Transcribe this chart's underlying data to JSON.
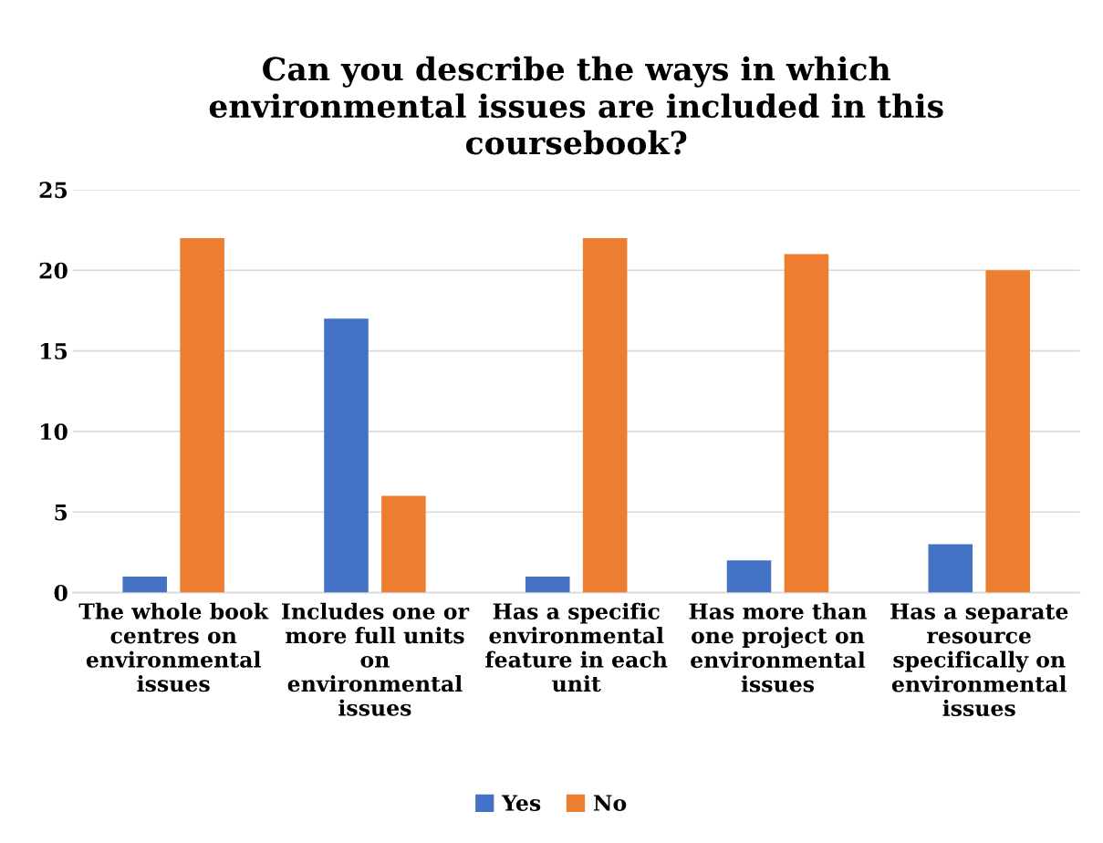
{
  "chart_data": {
    "type": "bar",
    "title": "Can you describe the ways in which\nenvironmental issues are included in this\ncoursebook?",
    "categories": [
      "The whole book\ncentres on\nenvironmental\nissues",
      "Includes one or\nmore full units\non\nenvironmental\nissues",
      "Has a specific\nenvironmental\nfeature in each\nunit",
      "Has more than\none project on\nenvironmental\nissues",
      "Has a separate\nresource\nspecifically on\nenvironmental\nissues"
    ],
    "series": [
      {
        "name": "Yes",
        "color": "#4472c4",
        "values": [
          1,
          17,
          1,
          2,
          3
        ]
      },
      {
        "name": "No",
        "color": "#ed7d31",
        "values": [
          22,
          6,
          22,
          21,
          20
        ]
      }
    ],
    "ylim": [
      0,
      25
    ],
    "yticks": [
      0,
      5,
      10,
      15,
      20,
      25
    ],
    "grid": "y",
    "legend": "bottom"
  }
}
